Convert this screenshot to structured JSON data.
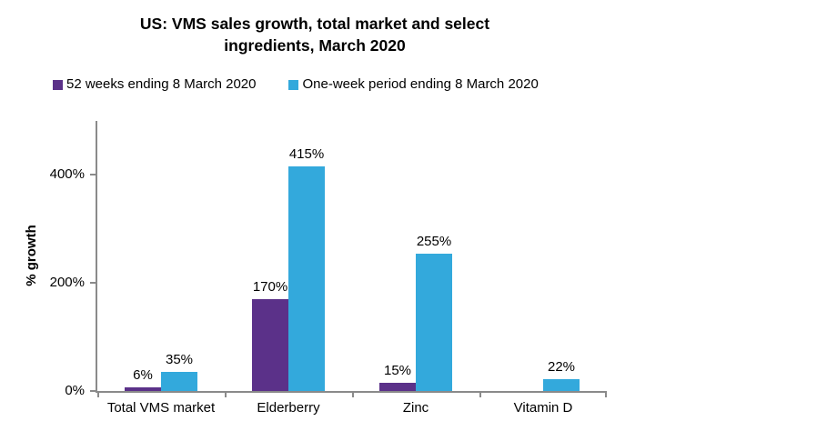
{
  "title": {
    "line1": "US: VMS sales growth, total market and select",
    "line2": "ingredients, March 2020"
  },
  "chart_data": {
    "type": "bar",
    "title": "US: VMS sales growth, total market and select ingredients, March 2020",
    "xlabel": "",
    "ylabel": "% growth",
    "categories": [
      "Total VMS market",
      "Elderberry",
      "Zinc",
      "Vitamin D"
    ],
    "series": [
      {
        "name": "52 weeks ending 8 March 2020",
        "color": "#5b3189",
        "values": [
          6,
          170,
          15,
          null
        ],
        "data_labels": [
          "6%",
          "170%",
          "15%",
          null
        ]
      },
      {
        "name": "One-week period ending 8 March 2020",
        "color": "#33a9dc",
        "values": [
          35,
          415,
          255,
          22
        ],
        "data_labels": [
          "35%",
          "415%",
          "255%",
          "22%"
        ]
      }
    ],
    "ylim": [
      0,
      500
    ],
    "yticks": [
      0,
      200,
      400
    ],
    "ytick_labels": [
      "0%",
      "200%",
      "400%"
    ],
    "legend_position": "top-left",
    "grid": false
  },
  "colors": {
    "axis": "#8a8a8a",
    "text": "#000000",
    "background": "#ffffff"
  }
}
